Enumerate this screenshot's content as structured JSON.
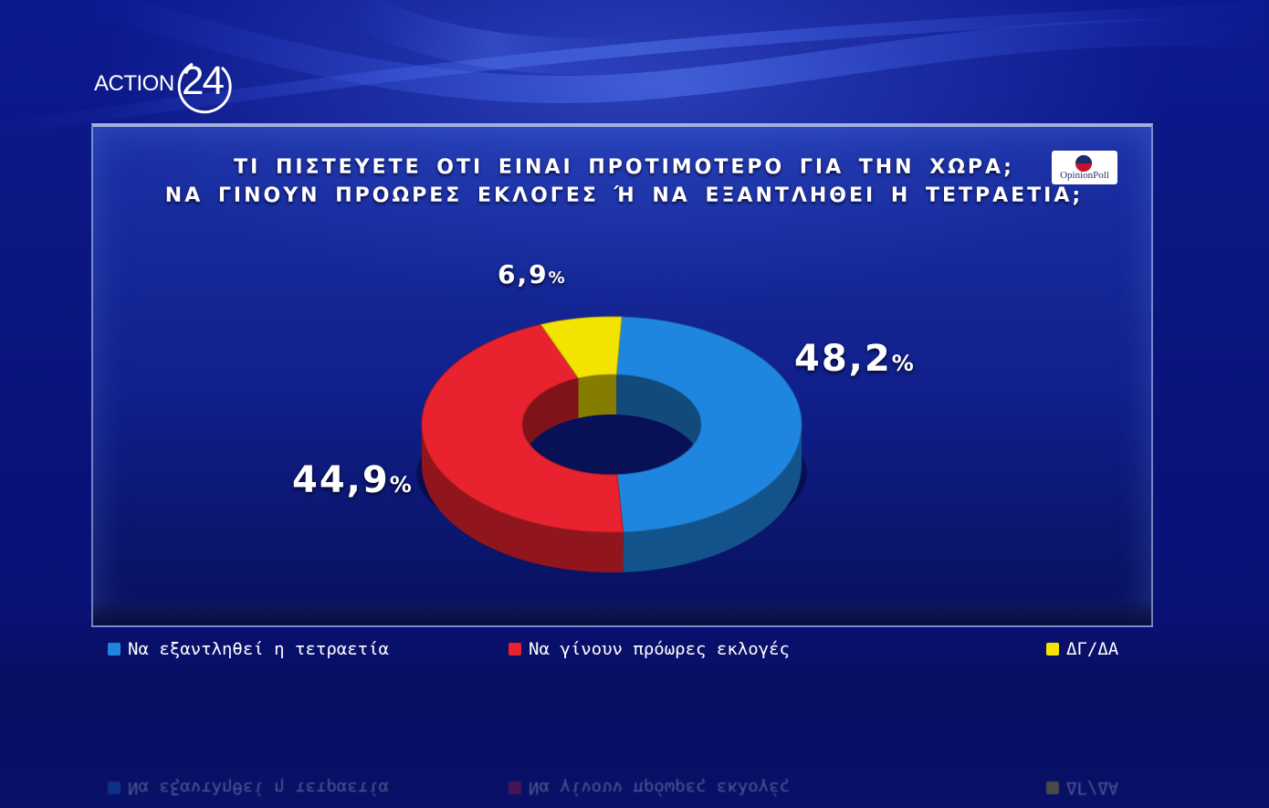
{
  "logo": {
    "brand_text": "ACTION",
    "brand_number": "24"
  },
  "poll_badge": {
    "text": "OpinionPoll"
  },
  "chart_data": {
    "type": "pie",
    "style": "donut",
    "title": "ΤΙ ΠΙΣΤΕΥΕΤΕ ΟΤΙ ΕΙΝΑΙ ΠΡΟΤΙΜΟΤΕΡΟ ΓΙΑ ΤΗΝ ΧΩΡΑ;",
    "subtitle": "ΝΑ ΓΙΝΟΥΝ ΠΡΟΩΡΕΣ ΕΚΛΟΓΕΣ Ή ΝΑ ΕΞΑΝΤΛΗΘΕΙ Η ΤΕΤΡΑΕΤΙΑ;",
    "slices": [
      {
        "label": "Να εξαντληθεί η τετραετία",
        "value": 48.2,
        "display": "48,2",
        "color": "#1f86e0"
      },
      {
        "label": "Να γίνουν πρόωρες εκλογές",
        "value": 44.9,
        "display": "44,9",
        "color": "#e8222e"
      },
      {
        "label": "ΔΓ/ΔΑ",
        "value": 6.9,
        "display": "6,9",
        "color": "#f2e400"
      }
    ],
    "percent_sign": "%",
    "legend_position": "bottom"
  }
}
